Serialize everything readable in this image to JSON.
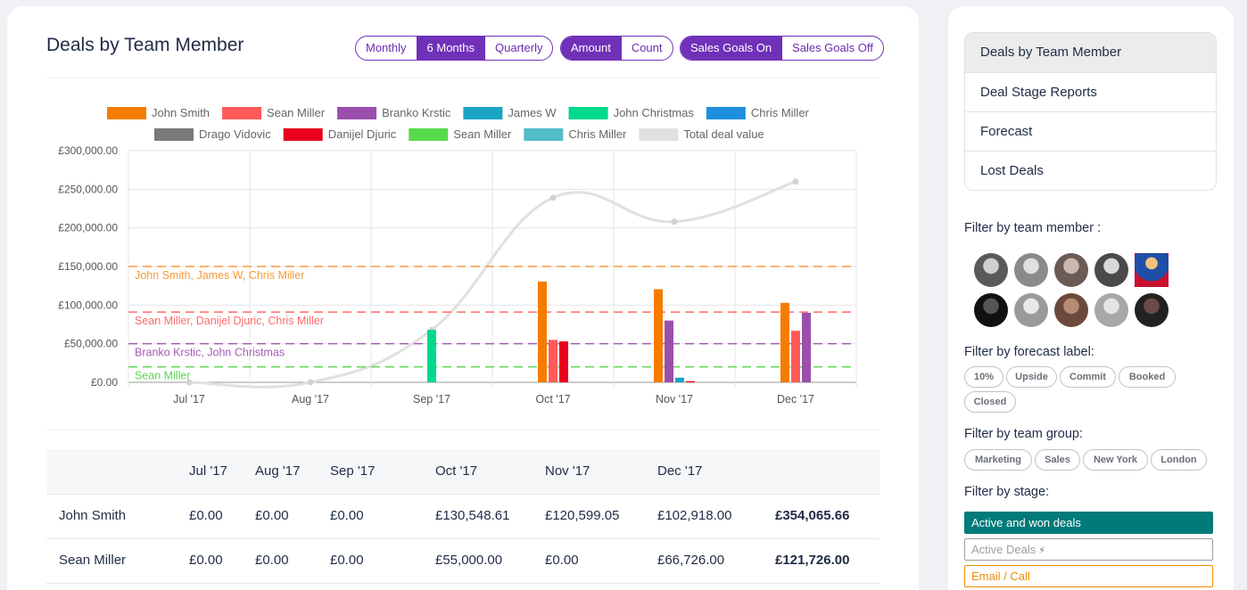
{
  "page": {
    "title": "Deals by Team Member",
    "period_buttons": [
      "Monthly",
      "6 Months",
      "Quarterly"
    ],
    "period_active": "6 Months",
    "metric_buttons": [
      "Amount",
      "Count"
    ],
    "metric_active": "Amount",
    "goal_buttons": [
      "Sales Goals On",
      "Sales Goals Off"
    ],
    "goal_active": "Sales Goals On"
  },
  "chart_data": {
    "type": "bar",
    "categories": [
      "Jul '17",
      "Aug '17",
      "Sep '17",
      "Oct '17",
      "Nov '17",
      "Dec '17"
    ],
    "ylim": [
      0,
      300000
    ],
    "y_ticks": [
      "£0.00",
      "£50,000.00",
      "£100,000.00",
      "£150,000.00",
      "£200,000.00",
      "£250,000.00",
      "£300,000.00"
    ],
    "grid": true,
    "legend_position": "top",
    "series": [
      {
        "name": "John Smith",
        "color": "#f57c00",
        "values": [
          0,
          0,
          0,
          130548.61,
          120599.05,
          102918
        ]
      },
      {
        "name": "Sean Miller",
        "color": "#ff5a5a",
        "values": [
          0,
          0,
          0,
          55000,
          0,
          66726
        ]
      },
      {
        "name": "Branko Krstic",
        "color": "#9b4fac",
        "values": [
          0,
          0,
          0,
          0,
          80000,
          90000
        ]
      },
      {
        "name": "James W",
        "color": "#1aa5c4",
        "values": [
          0,
          0,
          0,
          0,
          6000,
          0
        ]
      },
      {
        "name": "John Christmas",
        "color": "#00d98b",
        "values": [
          0,
          0,
          68000,
          0,
          0,
          0
        ]
      },
      {
        "name": "Chris Miller",
        "color": "#1e8fdc",
        "values": [
          0,
          0,
          0,
          0,
          0,
          0
        ]
      },
      {
        "name": "Drago Vidovic",
        "color": "#7a7a7a",
        "values": [
          0,
          0,
          0,
          0,
          0,
          0
        ]
      },
      {
        "name": "Danijel Djuric",
        "color": "#e8001c",
        "values": [
          0,
          0,
          0,
          53000,
          1500,
          0
        ]
      },
      {
        "name": "Sean Miller",
        "color": "#58d94c",
        "values": [
          0,
          0,
          0,
          0,
          0,
          0
        ]
      },
      {
        "name": "Chris Miller",
        "color": "#52bcc8",
        "values": [
          0,
          0,
          0,
          0,
          0,
          0
        ]
      }
    ],
    "total": {
      "name": "Total deal value",
      "color": "#e0e0e0",
      "values": [
        0,
        0,
        68000,
        239000,
        208000,
        260000
      ]
    },
    "goal_lines": [
      {
        "label": "John Smith, James W, Chris Miller",
        "value": 150000,
        "color": "#f59a3a"
      },
      {
        "label": "Sean Miller, Danijel Djuric, Chris Miller",
        "value": 91000,
        "color": "#ff6b6b"
      },
      {
        "label": "Branko Krstic, John Christmas",
        "value": 50000,
        "color": "#a55bb5"
      },
      {
        "label": "Sean Miller",
        "value": 20000,
        "color": "#5ad94c"
      }
    ]
  },
  "table": {
    "headers": [
      "",
      "Jul '17",
      "Aug '17",
      "Sep '17",
      "Oct '17",
      "Nov '17",
      "Dec '17",
      ""
    ],
    "rows": [
      {
        "name": "John Smith",
        "values": [
          "£0.00",
          "£0.00",
          "£0.00",
          "£130,548.61",
          "£120,599.05",
          "£102,918.00"
        ],
        "total": "£354,065.66"
      },
      {
        "name": "Sean Miller",
        "values": [
          "£0.00",
          "£0.00",
          "£0.00",
          "£55,000.00",
          "£0.00",
          "£66,726.00"
        ],
        "total": "£121,726.00"
      }
    ]
  },
  "sidebar": {
    "menu": [
      "Deals by Team Member",
      "Deal Stage Reports",
      "Forecast",
      "Lost Deals"
    ],
    "filter_member_label": "Filter by team member :",
    "avatars": [
      "avatar-1",
      "avatar-2",
      "avatar-3",
      "avatar-4",
      "avatar-5",
      "avatar-6",
      "avatar-7",
      "avatar-8",
      "avatar-9",
      "avatar-10"
    ],
    "filter_forecast_label": "Filter by forecast label:",
    "forecast_pills": [
      "10%",
      "Upside",
      "Commit",
      "Booked",
      "Closed"
    ],
    "filter_group_label": "Filter by team group:",
    "group_pills": [
      "Marketing",
      "Sales",
      "New York",
      "London"
    ],
    "filter_stage_label": "Filter by stage:",
    "stages": [
      {
        "label": "Active and won deals",
        "style": "filled",
        "color": "#007a7a"
      },
      {
        "label": "Active Deals",
        "style": "outline",
        "color": "#9aa0a6"
      },
      {
        "label": "Email / Call",
        "style": "outline",
        "color": "#f08c00"
      }
    ]
  }
}
